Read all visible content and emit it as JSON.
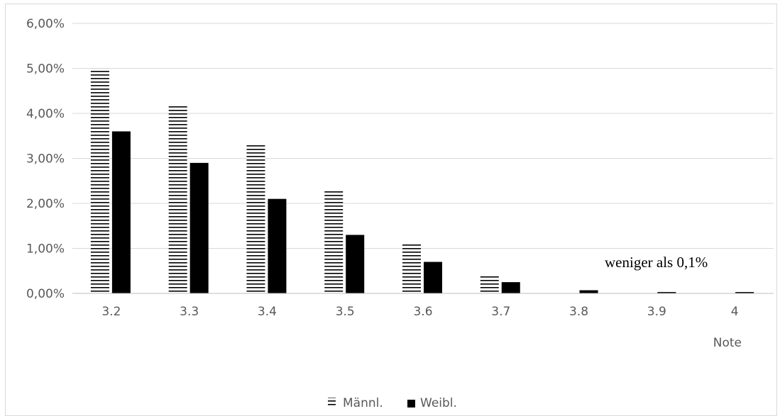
{
  "chart_data": {
    "type": "bar",
    "categories": [
      "3.2",
      "3.3",
      "3.4",
      "3.5",
      "3.6",
      "3.7",
      "3.8",
      "3.9",
      "4"
    ],
    "series": [
      {
        "name": "Männl.",
        "values": [
          5.0,
          4.2,
          3.3,
          2.3,
          1.1,
          0.4,
          0.03,
          0.01,
          0.01
        ],
        "pattern": "horizontal-stripes",
        "color": "#000000"
      },
      {
        "name": "Weibl.",
        "values": [
          3.6,
          2.9,
          2.1,
          1.3,
          0.7,
          0.25,
          0.07,
          0.03,
          0.03
        ],
        "pattern": "solid",
        "color": "#000000"
      }
    ],
    "xlabel": "Note",
    "ylabel": "",
    "ylim": [
      0,
      6
    ],
    "yticks": [
      "0,00%",
      "1,00%",
      "2,00%",
      "3,00%",
      "4,00%",
      "5,00%",
      "6,00%"
    ],
    "annotation": "weniger als 0,1%",
    "grid": true,
    "legend_position": "bottom"
  },
  "colors": {
    "gridline": "#d9d9d9",
    "axis": "#bfbfbf",
    "text": "#595959",
    "bar": "#000000"
  }
}
